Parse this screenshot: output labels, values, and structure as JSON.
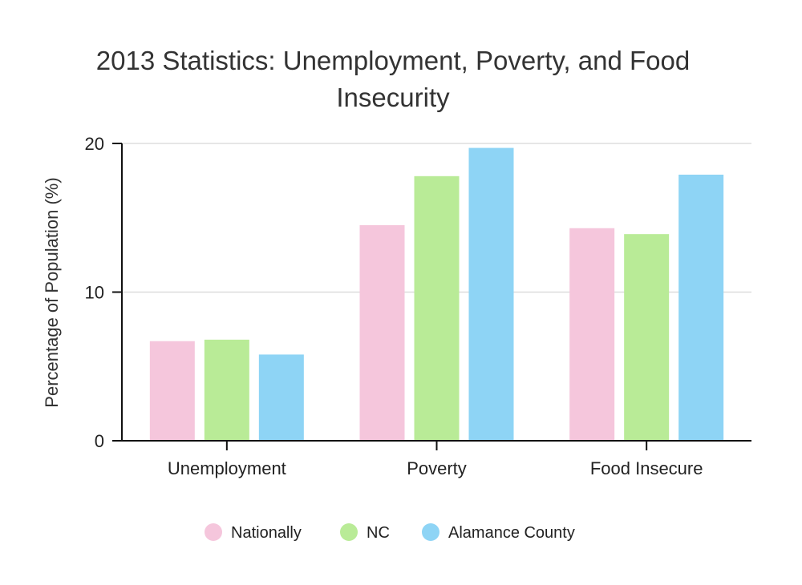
{
  "chart_data": {
    "type": "bar",
    "title_lines": [
      "2013 Statistics: Unemployment, Poverty, and Food",
      "Insecurity"
    ],
    "ylabel": "Percentage of Population (%)",
    "xlabel": "",
    "categories": [
      "Unemployment",
      "Poverty",
      "Food Insecure"
    ],
    "series": [
      {
        "name": "Nationally",
        "values": [
          6.7,
          14.5,
          14.3
        ],
        "color": "#f5c6dc"
      },
      {
        "name": "NC",
        "values": [
          6.8,
          17.8,
          13.9
        ],
        "color": "#b9eb97"
      },
      {
        "name": "Alamance County",
        "values": [
          5.8,
          19.7,
          17.9
        ],
        "color": "#8ed4f5"
      }
    ],
    "ylim": [
      0,
      20
    ],
    "yticks": [
      0,
      10,
      20
    ],
    "ytick_labels": [
      "0",
      "10",
      "20"
    ],
    "grid": true,
    "legend_position": "bottom"
  }
}
